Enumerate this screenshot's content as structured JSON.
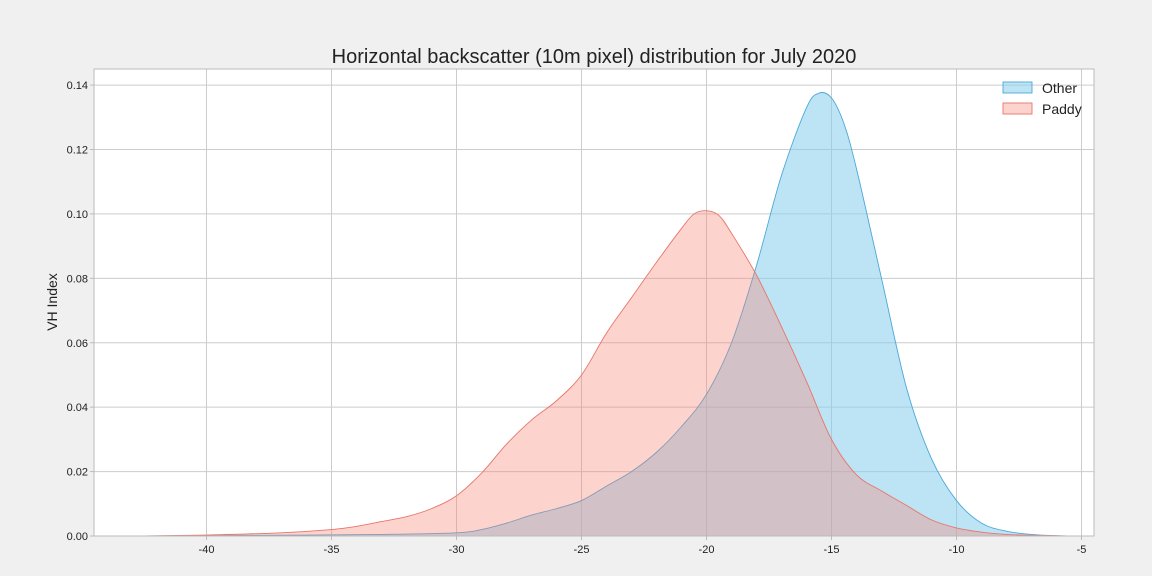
{
  "chart_data": {
    "type": "area",
    "title": "Horizontal backscatter (10m pixel) distribution for July 2020",
    "xlabel": "",
    "ylabel": "VH Index",
    "xlim": [
      -44.5,
      -4.5
    ],
    "ylim": [
      0,
      0.145
    ],
    "xticks": [
      "-40",
      "-35",
      "-30",
      "-25",
      "-20",
      "-15",
      "-10",
      "-5"
    ],
    "yticks": [
      "0.00",
      "0.02",
      "0.04",
      "0.06",
      "0.08",
      "0.10",
      "0.12",
      "0.14"
    ],
    "grid": true,
    "legend_position": "top-right",
    "series": [
      {
        "name": "Other",
        "color": "#87ceeb",
        "edge_color": "#4aa8d8",
        "opacity": 0.55,
        "x": [
          -42.5,
          -38,
          -33,
          -30,
          -29,
          -28,
          -27,
          -26,
          -25,
          -24,
          -23,
          -22,
          -21,
          -20,
          -19,
          -18,
          -17,
          -16,
          -15.5,
          -15,
          -14.5,
          -14,
          -13,
          -12,
          -11,
          -10,
          -9,
          -8,
          -7,
          -6,
          -5.5
        ],
        "y": [
          0,
          0.0002,
          0.0005,
          0.001,
          0.002,
          0.004,
          0.0065,
          0.0085,
          0.011,
          0.0155,
          0.02,
          0.026,
          0.034,
          0.044,
          0.06,
          0.084,
          0.112,
          0.133,
          0.1375,
          0.136,
          0.128,
          0.114,
          0.08,
          0.046,
          0.024,
          0.011,
          0.004,
          0.0015,
          0.0005,
          0.0001,
          0
        ]
      },
      {
        "name": "Paddy",
        "color": "#fa8072",
        "edge_color": "#e8756a",
        "opacity": 0.35,
        "x": [
          -42.5,
          -40,
          -37,
          -35,
          -34,
          -33,
          -32,
          -31,
          -30,
          -29,
          -28,
          -27,
          -26,
          -25,
          -24,
          -23,
          -22,
          -21,
          -20.5,
          -20,
          -19.5,
          -19,
          -18,
          -17,
          -16,
          -15,
          -14,
          -13,
          -12,
          -11,
          -10,
          -9,
          -8,
          -7,
          -6,
          -5.5
        ],
        "y": [
          0,
          0.0003,
          0.001,
          0.002,
          0.003,
          0.0045,
          0.006,
          0.0085,
          0.0125,
          0.0195,
          0.0285,
          0.036,
          0.042,
          0.05,
          0.063,
          0.074,
          0.085,
          0.0955,
          0.1,
          0.101,
          0.0995,
          0.094,
          0.081,
          0.065,
          0.048,
          0.03,
          0.019,
          0.014,
          0.0095,
          0.005,
          0.0025,
          0.0012,
          0.0005,
          0.0002,
          0.0001,
          0
        ]
      }
    ]
  }
}
